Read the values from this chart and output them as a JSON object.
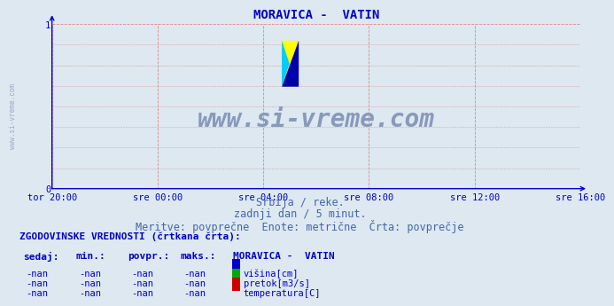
{
  "title": "MORAVICA -  VATIN",
  "title_color": "#0000cc",
  "bg_color": "#dde8f0",
  "plot_bg_color": "#dde8f0",
  "axis_color": "#0000cc",
  "grid_color": "#dd8888",
  "tick_color": "#0000cc",
  "watermark_text": "www.si-vreme.com",
  "watermark_color": "#8899bb",
  "ylim": [
    0,
    1
  ],
  "xtick_labels": [
    "tor 20:00",
    "sre 00:00",
    "sre 04:00",
    "sre 08:00",
    "sre 12:00",
    "sre 16:00"
  ],
  "subtitle1": "Srbija / reke.",
  "subtitle2": "zadnji dan / 5 minut.",
  "subtitle3": "Meritve: povprečne  Enote: metrične  Črta: povprečje",
  "subtitle_color": "#4466aa",
  "side_text": "www.si-vreme.com",
  "side_text_color": "#99aacc",
  "legend_title": "ZGODOVINSKE VREDNOSTI (črtkana črta):",
  "legend_headers": [
    "sedaj:",
    "min.:",
    "povpr.:",
    "maks.:"
  ],
  "legend_station": "MORAVICA -  VATIN",
  "legend_rows": [
    {
      "values": [
        "-nan",
        "-nan",
        "-nan",
        "-nan"
      ],
      "label": "višina[cm]",
      "color": "#0000cc"
    },
    {
      "values": [
        "-nan",
        "-nan",
        "-nan",
        "-nan"
      ],
      "label": "pretok[m3/s]",
      "color": "#00aa00"
    },
    {
      "values": [
        "-nan",
        "-nan",
        "-nan",
        "-nan"
      ],
      "label": "temperatura[C]",
      "color": "#cc0000"
    }
  ],
  "font_family": "monospace",
  "title_fontsize": 10,
  "tick_fontsize": 7.5,
  "subtitle_fontsize": 8.5,
  "legend_fontsize": 7.5,
  "legend_header_fontsize": 8
}
